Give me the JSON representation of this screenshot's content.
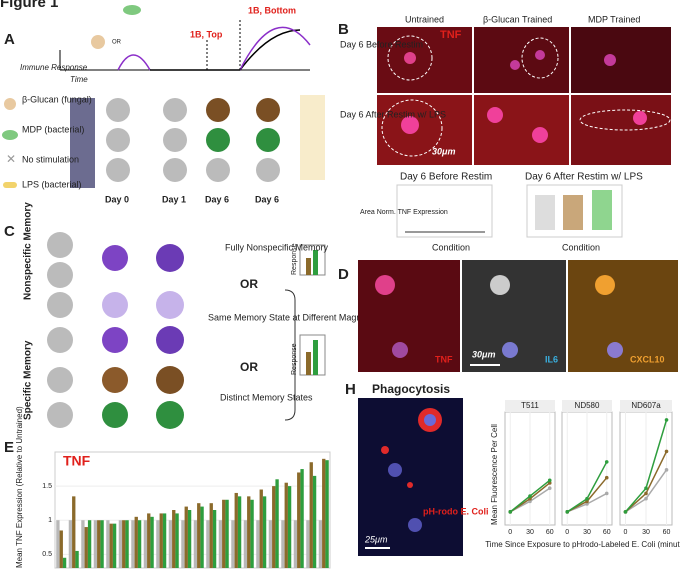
{
  "figure_title": "Figure 1",
  "panels": {
    "A": {
      "letter": "A",
      "labels": {
        "bottom": "1B, Bottom",
        "top": "1B, Top",
        "or": "OR",
        "y_axis": "Immune Response",
        "x_axis": "Time"
      },
      "rows": [
        "β-Glucan (fungal)",
        "MDP (bacterial)",
        "No stimulation",
        "LPS (bacterial)"
      ],
      "days": [
        "Day 0",
        "Day 1",
        "Day 6",
        "Day 6"
      ]
    },
    "B": {
      "letter": "B",
      "columns": [
        "Untrained",
        "β-Glucan Trained",
        "MDP Trained"
      ],
      "rows": [
        "Day 6 Before Restim",
        "Day 6 After Restim w/ LPS"
      ],
      "stain": "TNF",
      "scale": "30μm",
      "plots": [
        "Day 6 Before Restim",
        "Day 6 After Restim w/ LPS"
      ],
      "y_label": "Area Norm. TNF Expression",
      "x_label": "Condition"
    },
    "C": {
      "letter": "C",
      "options": [
        "Fully Nonspecific Memory",
        "OR",
        "Same Memory State at Different Magnitude",
        "OR",
        "Distinct Memory States"
      ],
      "side_labels": [
        "Nonspecific Memory",
        "Specific Memory"
      ],
      "response": "Response"
    },
    "D": {
      "letter": "D",
      "stains": [
        "TNF",
        "IL6",
        "CXCL10"
      ],
      "scale": "30μm"
    },
    "E": {
      "letter": "E"
    },
    "H": {
      "letter": "H",
      "title": "Phagocytosis",
      "stain": "pH-rodo E. Coli",
      "scale": "25μm"
    }
  },
  "chart_data": [
    {
      "type": "bar",
      "title": "TNF",
      "y_label": "Mean TNF Expression (Relative to Untrained)",
      "categories": [
        null,
        null,
        null,
        null,
        null,
        null,
        null,
        null,
        null,
        null,
        null,
        null,
        null,
        null,
        null,
        null,
        null,
        null,
        null,
        null,
        null,
        null
      ],
      "series": [
        {
          "color": "#b8b8b8",
          "values": [
            1,
            1,
            1,
            1,
            1,
            1,
            1,
            1,
            1,
            1,
            1,
            1,
            1,
            1,
            1,
            1,
            1,
            1,
            1,
            1,
            1,
            1
          ]
        },
        {
          "color": "#8b6a2b",
          "values": [
            0.85,
            1.35,
            0.9,
            1.0,
            0.95,
            1.0,
            1.05,
            1.1,
            1.1,
            1.15,
            1.2,
            1.25,
            1.25,
            1.3,
            1.4,
            1.35,
            1.45,
            1.5,
            1.55,
            1.7,
            1.85,
            1.9
          ]
        },
        {
          "color": "#2e9e3e",
          "values": [
            0.45,
            0.55,
            1.0,
            1.0,
            0.95,
            1.0,
            1.0,
            1.05,
            1.1,
            1.1,
            1.15,
            1.2,
            1.15,
            1.3,
            1.35,
            1.3,
            1.35,
            1.6,
            1.5,
            1.75,
            1.65,
            1.88
          ]
        }
      ],
      "ylim": [
        0.3,
        2.0
      ],
      "yticks": [
        0.5,
        1.0,
        1.5
      ]
    },
    {
      "type": "line",
      "title": "T511",
      "x": [
        0,
        30,
        60
      ],
      "xlim": [
        -8,
        68
      ],
      "xticks": [
        0,
        30,
        60
      ],
      "ylim": [
        0,
        4.3
      ],
      "y_label": "Mean Fluorescence Per Cell",
      "x_label": "Time Since Exposure to pHrodo-Labeled E. Coli (minutes)",
      "series": [
        {
          "color": "#aaaaaa",
          "values": [
            0.5,
            0.9,
            1.4
          ]
        },
        {
          "color": "#8b6a2b",
          "values": [
            0.5,
            1.0,
            1.6
          ]
        },
        {
          "color": "#2e9e3e",
          "values": [
            0.5,
            1.1,
            1.7
          ]
        }
      ]
    },
    {
      "type": "line",
      "title": "ND580",
      "x": [
        0,
        30,
        60
      ],
      "xlim": [
        -8,
        68
      ],
      "xticks": [
        0,
        30,
        60
      ],
      "ylim": [
        0,
        4.3
      ],
      "series": [
        {
          "color": "#aaaaaa",
          "values": [
            0.5,
            0.8,
            1.2
          ]
        },
        {
          "color": "#8b6a2b",
          "values": [
            0.5,
            0.9,
            1.8
          ]
        },
        {
          "color": "#2e9e3e",
          "values": [
            0.5,
            1.0,
            2.4
          ]
        }
      ]
    },
    {
      "type": "line",
      "title": "ND607a",
      "x": [
        0,
        30,
        60
      ],
      "xlim": [
        -8,
        68
      ],
      "xticks": [
        0,
        30,
        60
      ],
      "ylim": [
        0,
        4.3
      ],
      "series": [
        {
          "color": "#aaaaaa",
          "values": [
            0.5,
            1.0,
            2.1
          ]
        },
        {
          "color": "#8b6a2b",
          "values": [
            0.5,
            1.2,
            2.8
          ]
        },
        {
          "color": "#2e9e3e",
          "values": [
            0.5,
            1.4,
            4.0
          ]
        }
      ]
    }
  ]
}
